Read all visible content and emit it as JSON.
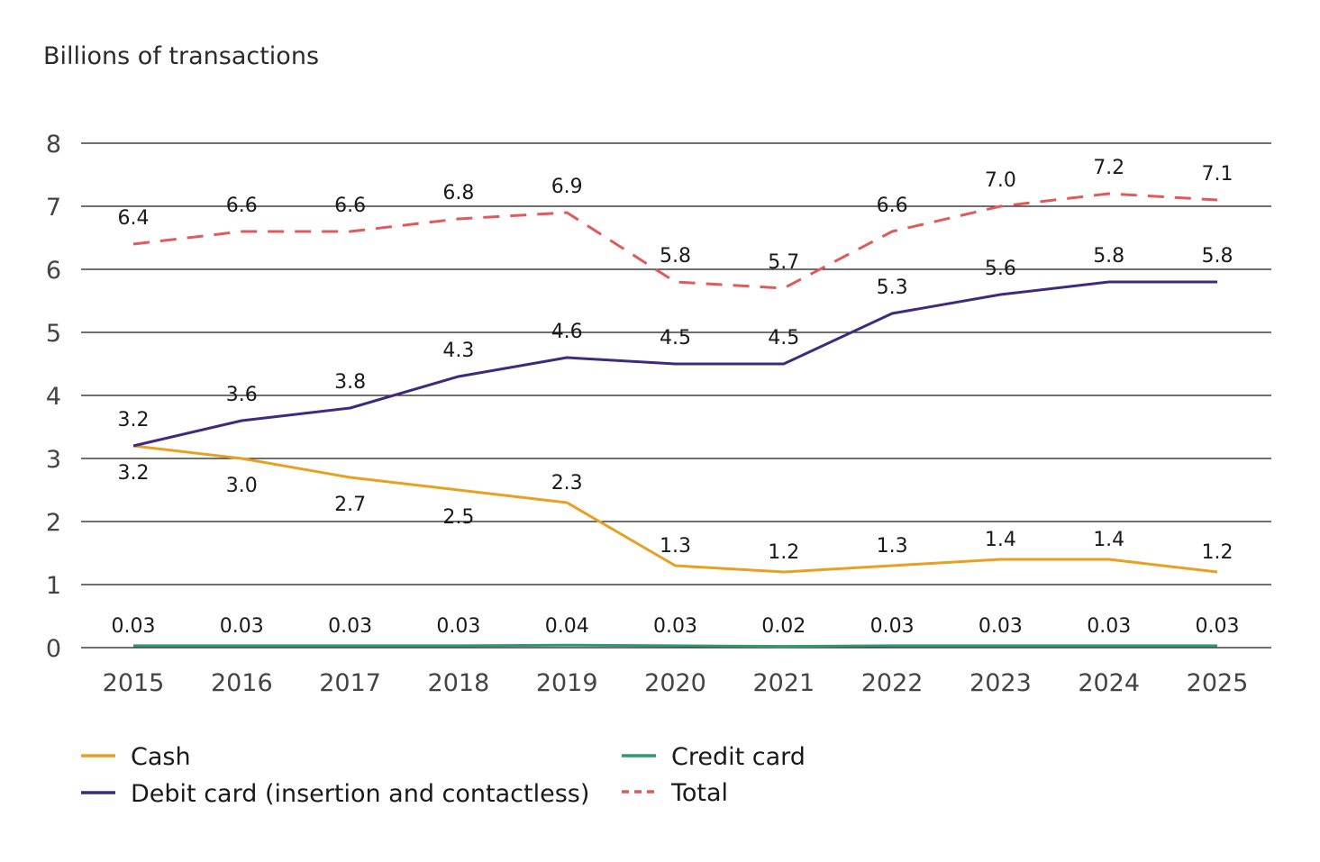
{
  "chart_data": {
    "type": "line",
    "ylabel": "Billions of transactions",
    "ylim": [
      0,
      8
    ],
    "yticks": [
      0,
      1,
      2,
      3,
      4,
      5,
      6,
      7,
      8
    ],
    "x": [
      "2015",
      "2016",
      "2017",
      "2018",
      "2019",
      "2020",
      "2021",
      "2022",
      "2023",
      "2024",
      "2025"
    ],
    "grid": true,
    "legend_position": "bottom",
    "series": [
      {
        "name": "Cash",
        "color": "#E8A020",
        "style": "solid",
        "values": [
          3.2,
          3.0,
          2.7,
          2.5,
          2.3,
          1.3,
          1.2,
          1.3,
          1.4,
          1.4,
          1.2
        ],
        "labels": [
          "3.2",
          "3.0",
          "2.7",
          "2.5",
          "2.3",
          "1.3",
          "1.2",
          "1.3",
          "1.4",
          "1.4",
          "1.2"
        ]
      },
      {
        "name": "Debit card (insertion and contactless)",
        "color": "#3F2A7E",
        "style": "solid",
        "values": [
          3.2,
          3.6,
          3.8,
          4.3,
          4.6,
          4.5,
          4.5,
          5.3,
          5.6,
          5.8,
          5.8
        ],
        "labels": [
          "3.2",
          "3.6",
          "3.8",
          "4.3",
          "4.6",
          "4.5",
          "4.5",
          "5.3",
          "5.6",
          "5.8",
          "5.8"
        ]
      },
      {
        "name": "Credit card",
        "color": "#2E9A6E",
        "style": "solid",
        "values": [
          0.03,
          0.03,
          0.03,
          0.03,
          0.04,
          0.03,
          0.02,
          0.03,
          0.03,
          0.03,
          0.03
        ],
        "labels": [
          "0.03",
          "0.03",
          "0.03",
          "0.03",
          "0.04",
          "0.03",
          "0.02",
          "0.03",
          "0.03",
          "0.03",
          "0.03"
        ]
      },
      {
        "name": "Total",
        "color": "#E05A5A",
        "style": "dashed",
        "values": [
          6.4,
          6.6,
          6.6,
          6.8,
          6.9,
          5.8,
          5.7,
          6.6,
          7.0,
          7.2,
          7.1
        ],
        "labels": [
          "6.4",
          "6.6",
          "6.6",
          "6.8",
          "6.9",
          "5.8",
          "5.7",
          "6.6",
          "7.0",
          "7.2",
          "7.1"
        ]
      }
    ]
  }
}
